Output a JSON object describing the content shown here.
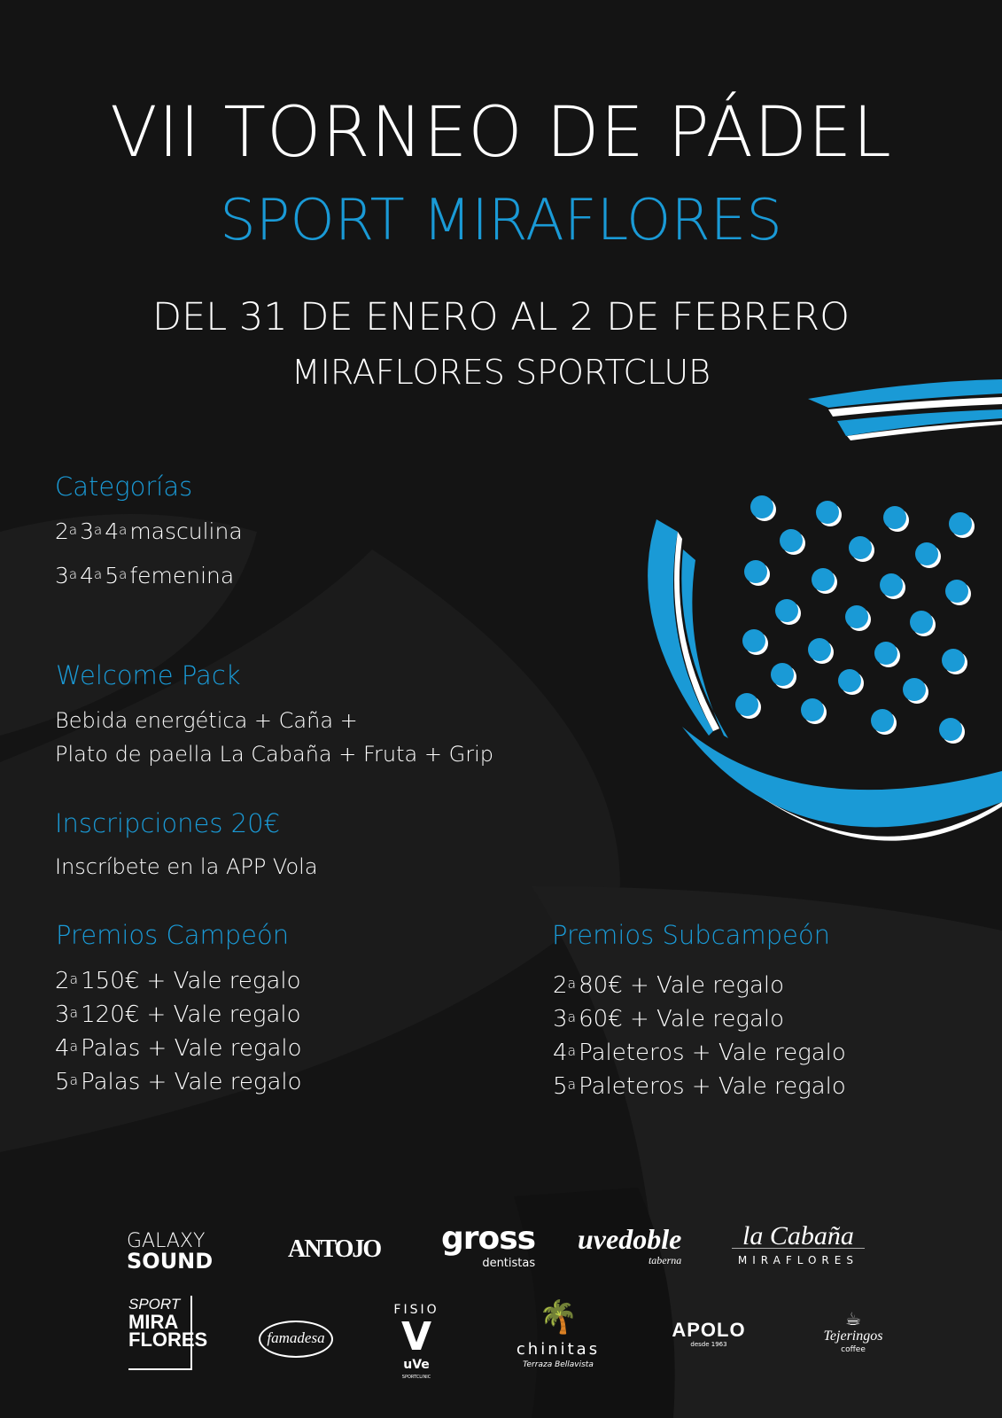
{
  "header": {
    "title": "VII TORNEO DE PÁDEL",
    "subtitle": "SPORT MIRAFLORES",
    "dates": "DEL 31 DE ENERO AL 2 DE FEBRERO",
    "venue": "MIRAFLORES SPORTCLUB"
  },
  "colors": {
    "accent": "#1a9ad6",
    "background": "#141414"
  },
  "categorias": {
    "heading": "Categorías",
    "lines": [
      {
        "ords": [
          "2",
          "3",
          "4"
        ],
        "suffix": "a",
        "label": "masculina"
      },
      {
        "ords": [
          "3",
          "4",
          "5"
        ],
        "suffix": "a",
        "label": "femenina"
      }
    ]
  },
  "welcome": {
    "heading": "Welcome Pack",
    "lines": [
      "Bebida energética + Caña +",
      "Plato de paella La Cabaña + Fruta + Grip"
    ]
  },
  "inscripciones": {
    "heading": "Inscripciones 20€",
    "text": "Inscríbete en la APP Vola"
  },
  "campeon": {
    "heading": "Premios Campeón",
    "items": [
      {
        "ord": "2",
        "text": "150€ + Vale regalo"
      },
      {
        "ord": "3",
        "text": "120€ + Vale regalo"
      },
      {
        "ord": "4",
        "text": "Palas + Vale regalo"
      },
      {
        "ord": "5",
        "text": "Palas + Vale regalo"
      }
    ]
  },
  "subcampeon": {
    "heading": "Premios Subcampeón",
    "items": [
      {
        "ord": "2",
        "text": "80€ + Vale regalo"
      },
      {
        "ord": "3",
        "text": "60€ + Vale regalo"
      },
      {
        "ord": "4",
        "text": "Paleteros + Vale regalo"
      },
      {
        "ord": "5",
        "text": "Paleteros + Vale regalo"
      }
    ]
  },
  "ord_suffix": "a",
  "sponsors": {
    "galaxy": {
      "l1": "GALAXY",
      "l2": "SOUND"
    },
    "antojo": "ANTOJO",
    "gross": {
      "name": "gross",
      "sub": "dentistas"
    },
    "uvedoble": {
      "name": "uvedoble",
      "sub": "taberna"
    },
    "cabana": {
      "name": "la Cabaña",
      "sub": "MIRAFLORES"
    },
    "sport": {
      "l1": "SPORT",
      "l2": "MIRA",
      "l3": "FLORES"
    },
    "famadesa": "famadesa",
    "fisio": {
      "top": "FISIO",
      "mid": "V",
      "bottom": "uVe",
      "sub": "SPORTCLINIC"
    },
    "chinitas": {
      "name": "chinitas",
      "sub": "Terraza Bellavista"
    },
    "apolo": {
      "name": "APOLO",
      "sub": "desde 1963"
    },
    "tejeringos": {
      "name": "Tejeringos",
      "sub": "coffee"
    }
  }
}
